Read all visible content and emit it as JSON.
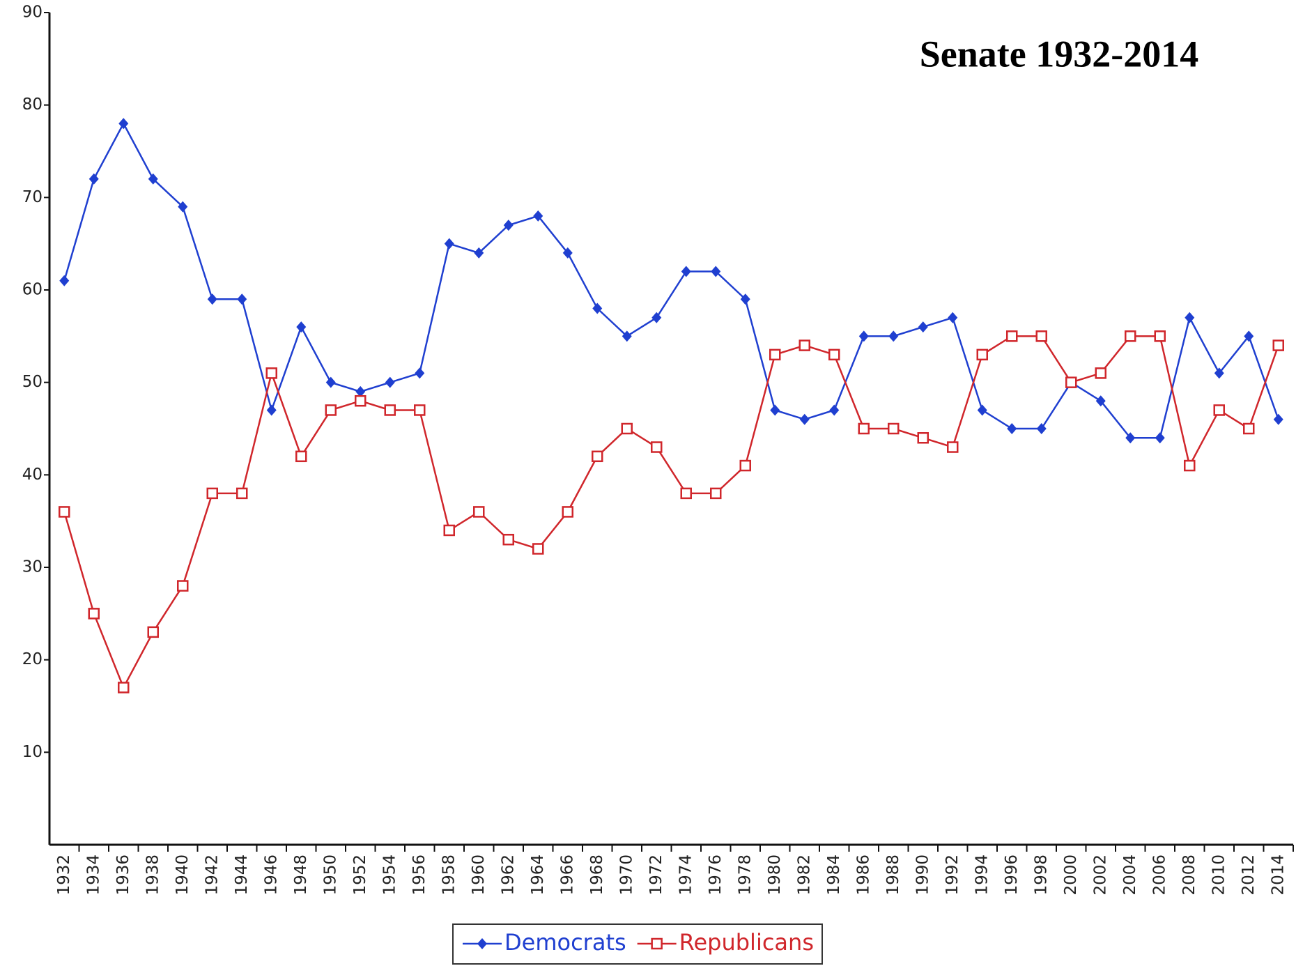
{
  "chart_data": {
    "type": "line",
    "title": "Senate 1932-2014",
    "categories": [
      "1932",
      "1934",
      "1936",
      "1938",
      "1940",
      "1942",
      "1944",
      "1946",
      "1948",
      "1950",
      "1952",
      "1954",
      "1956",
      "1958",
      "1960",
      "1962",
      "1964",
      "1966",
      "1968",
      "1970",
      "1972",
      "1974",
      "1976",
      "1978",
      "1980",
      "1982",
      "1984",
      "1986",
      "1988",
      "1990",
      "1992",
      "1994",
      "1996",
      "1998",
      "2000",
      "2002",
      "2004",
      "2006",
      "2008",
      "2010",
      "2012",
      "2014"
    ],
    "series": [
      {
        "name": "Democrats",
        "color": "#1f3fd0",
        "marker": "diamond",
        "values": [
          61,
          72,
          78,
          72,
          69,
          59,
          59,
          47,
          56,
          50,
          49,
          50,
          51,
          65,
          64,
          67,
          68,
          64,
          58,
          55,
          57,
          62,
          62,
          59,
          47,
          46,
          47,
          55,
          55,
          56,
          57,
          47,
          45,
          45,
          50,
          48,
          44,
          44,
          57,
          51,
          55,
          46
        ]
      },
      {
        "name": "Republicans",
        "color": "#d0262b",
        "marker": "square",
        "values": [
          36,
          25,
          17,
          23,
          28,
          38,
          38,
          51,
          42,
          47,
          48,
          47,
          47,
          34,
          36,
          33,
          32,
          36,
          42,
          45,
          43,
          38,
          38,
          41,
          53,
          54,
          53,
          45,
          45,
          44,
          43,
          53,
          55,
          55,
          50,
          51,
          55,
          55,
          41,
          47,
          45,
          54
        ]
      }
    ],
    "ylim": [
      0,
      90
    ],
    "yticks": [
      10,
      20,
      30,
      40,
      50,
      60,
      70,
      80,
      90
    ],
    "grid": false
  }
}
